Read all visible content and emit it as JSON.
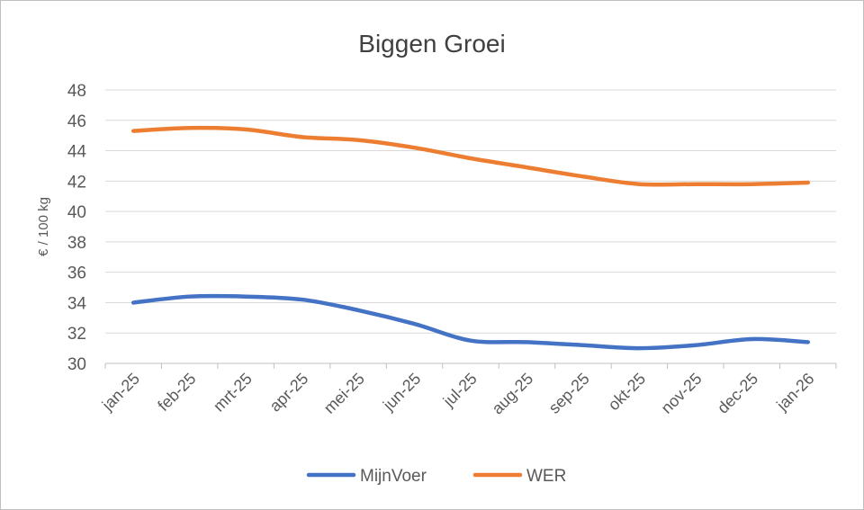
{
  "chart_data": {
    "type": "line",
    "title": "Biggen Groei",
    "ylabel": "€ / 100 kg",
    "xlabel": "",
    "categories": [
      "jan-25",
      "feb-25",
      "mrt-25",
      "apr-25",
      "mei-25",
      "jun-25",
      "jul-25",
      "aug-25",
      "sep-25",
      "okt-25",
      "nov-25",
      "dec-25",
      "jan-26"
    ],
    "yticks": [
      "30",
      "32",
      "34",
      "36",
      "38",
      "40",
      "42",
      "44",
      "46",
      "48"
    ],
    "ylim": [
      30,
      48
    ],
    "grid": true,
    "legend_position": "bottom",
    "series": [
      {
        "name": "MijnVoer",
        "color": "#4472c4",
        "values": [
          34.0,
          34.4,
          34.4,
          34.2,
          33.5,
          32.6,
          31.5,
          31.4,
          31.2,
          31.0,
          31.2,
          31.6,
          31.4
        ]
      },
      {
        "name": "WER",
        "color": "#ed7d31",
        "values": [
          45.3,
          45.5,
          45.4,
          44.9,
          44.7,
          44.2,
          43.5,
          42.9,
          42.3,
          41.8,
          41.8,
          41.8,
          41.9
        ]
      }
    ]
  }
}
